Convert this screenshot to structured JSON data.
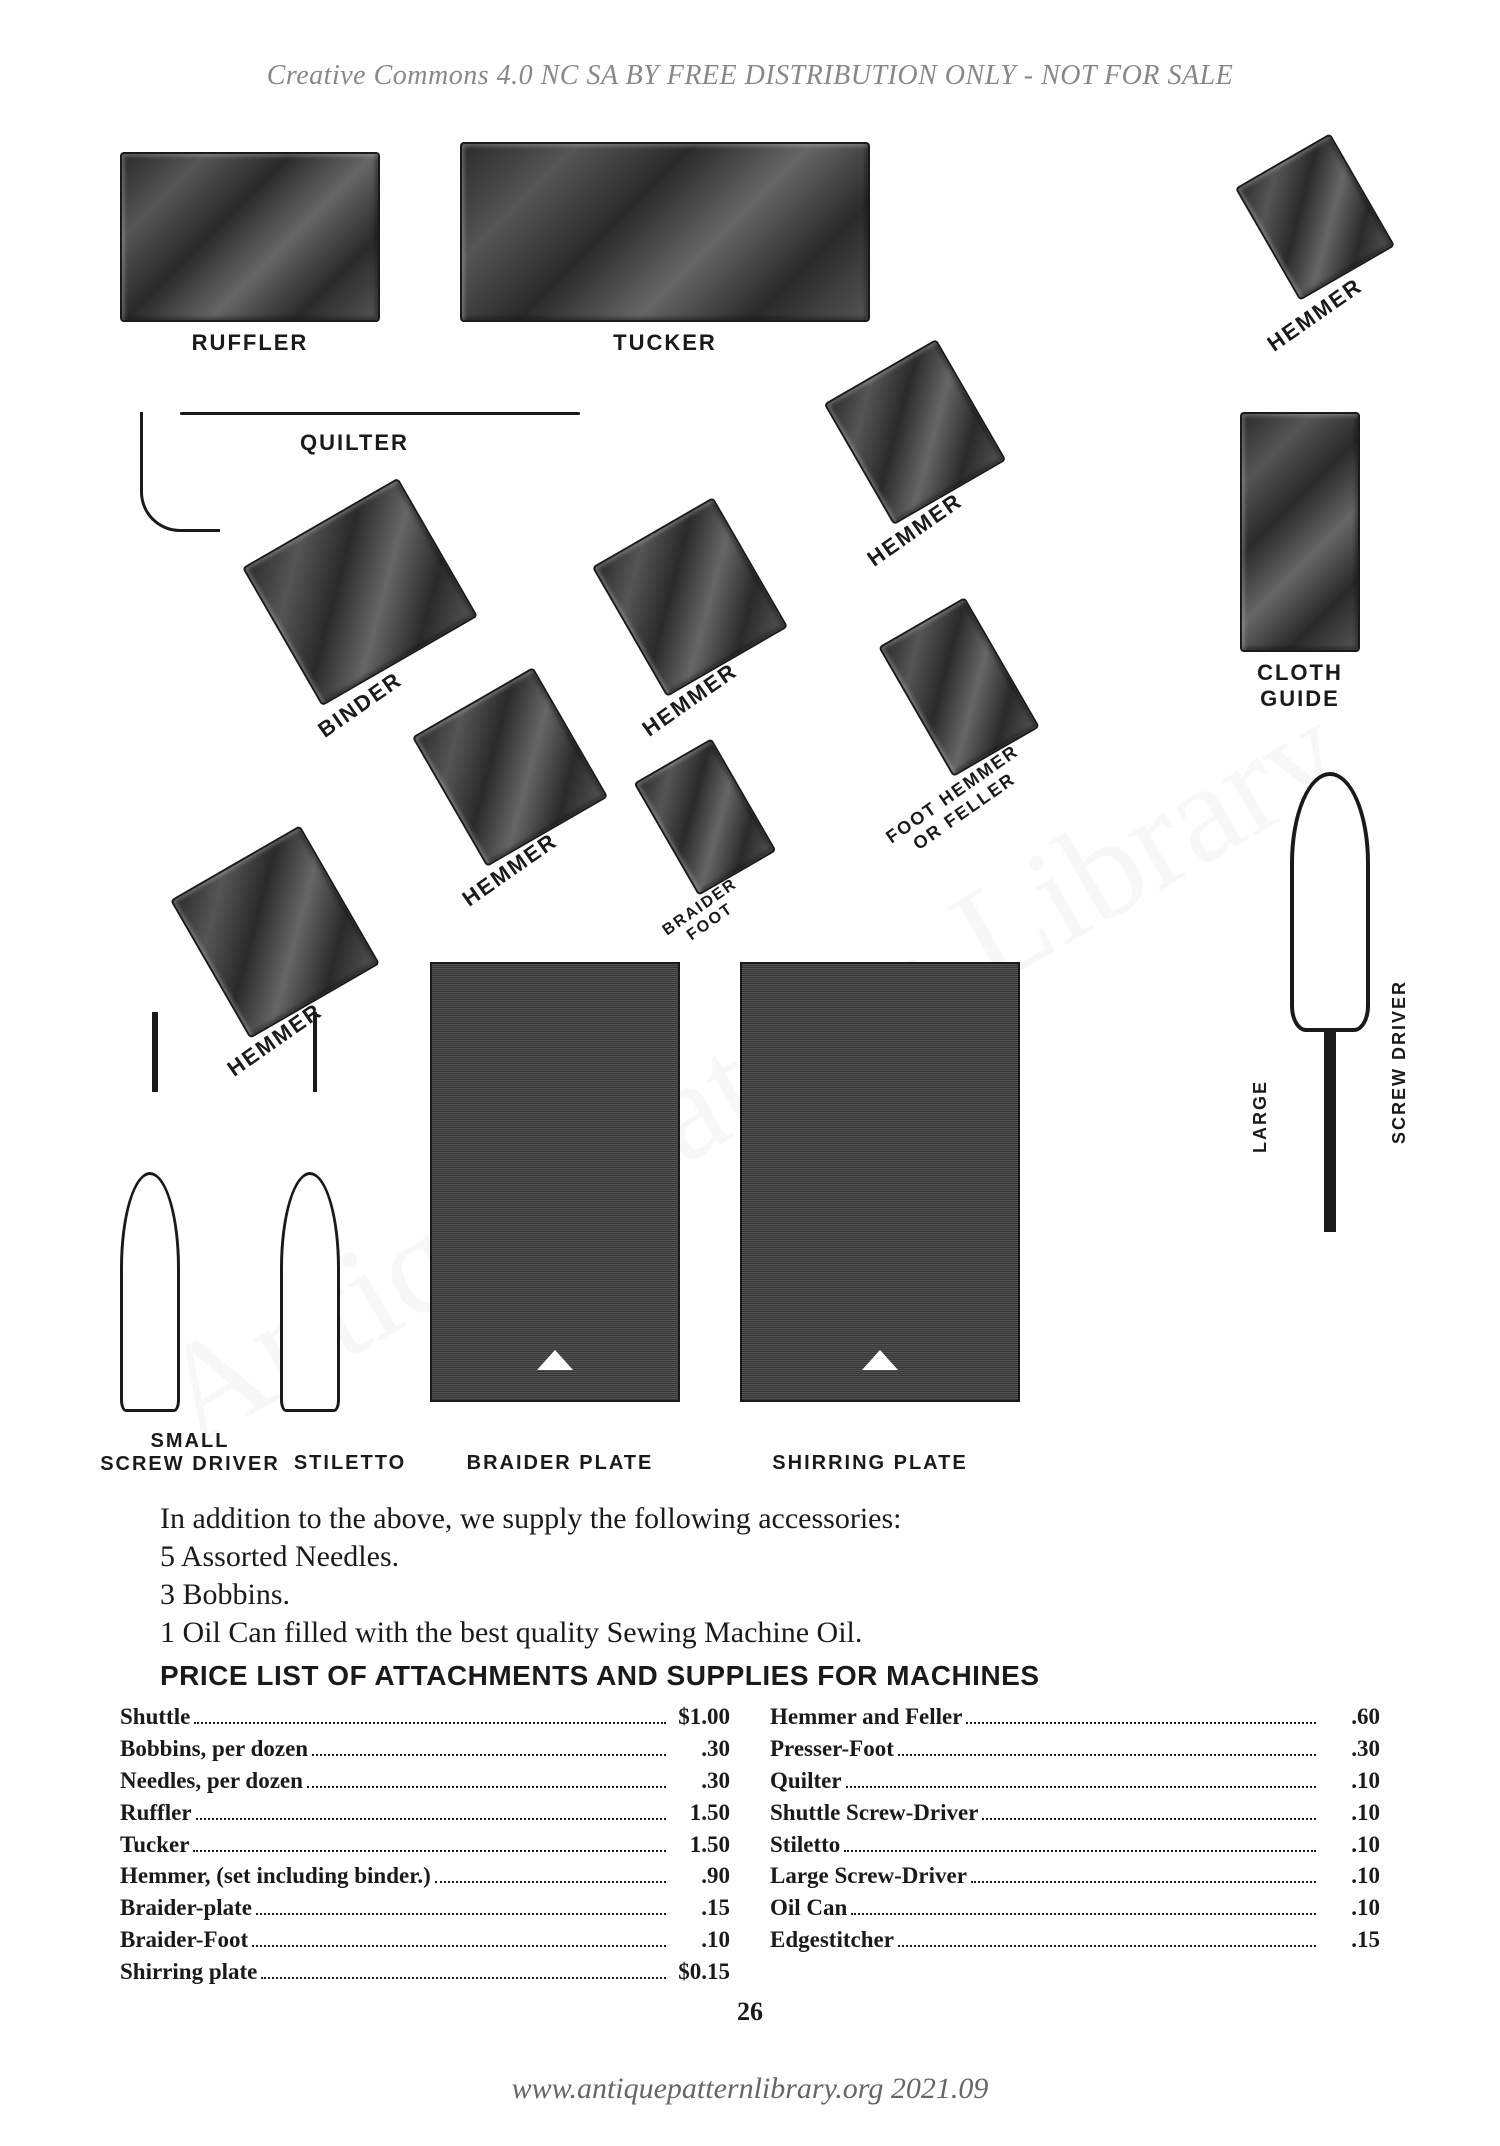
{
  "watermark": {
    "top": "Creative Commons 4.0 NC SA BY FREE DISTRIBUTION ONLY - NOT FOR SALE",
    "bottom": "www.antiquepatternlibrary.org 2021.09",
    "diagonal": "Antique Pattern Library"
  },
  "parts": {
    "ruffler": "RUFFLER",
    "tucker": "TUCKER",
    "quilter": "QUILTER",
    "hemmer": "HEMMER",
    "binder": "BINDER",
    "cloth_guide": "CLOTH\nGUIDE",
    "foot_hemmer": "FOOT HEMMER\nOR FELLER",
    "braider_foot": "BRAIDER\nFOOT",
    "small_screwdriver": "SMALL\nSCREW DRIVER",
    "stiletto": "STILETTO",
    "braider_plate": "BRAIDER PLATE",
    "shirring_plate": "SHIRRING PLATE",
    "large_screwdriver_large": "LARGE",
    "large_screwdriver": "SCREW DRIVER"
  },
  "accessories": {
    "intro": "In addition to the above, we supply the following accessories:",
    "line1": "5 Assorted Needles.",
    "line2": "3 Bobbins.",
    "line3": "1 Oil Can filled with the best quality Sewing Machine Oil."
  },
  "price_title": "PRICE LIST OF ATTACHMENTS AND SUPPLIES FOR MACHINES",
  "prices_left": [
    {
      "name": "Shuttle",
      "value": "$1.00"
    },
    {
      "name": "Bobbins, per dozen",
      "value": ".30"
    },
    {
      "name": "Needles, per dozen",
      "value": ".30"
    },
    {
      "name": "Ruffler",
      "value": "1.50"
    },
    {
      "name": "Tucker",
      "value": "1.50"
    },
    {
      "name": "Hemmer, (set including binder.)",
      "value": ".90"
    },
    {
      "name": "Braider-plate",
      "value": ".15"
    },
    {
      "name": "Braider-Foot",
      "value": ".10"
    },
    {
      "name": "Shirring plate",
      "value": "$0.15"
    }
  ],
  "prices_right": [
    {
      "name": "Hemmer and Feller",
      "value": ".60"
    },
    {
      "name": "Presser-Foot",
      "value": ".30"
    },
    {
      "name": "Quilter",
      "value": ".10"
    },
    {
      "name": "Shuttle Screw-Driver",
      "value": ".10"
    },
    {
      "name": "Stiletto",
      "value": ".10"
    },
    {
      "name": "Large Screw-Driver",
      "value": ".10"
    },
    {
      "name": "Oil Can",
      "value": ".10"
    },
    {
      "name": "Edgestitcher",
      "value": ".15"
    }
  ],
  "page_number": "26"
}
